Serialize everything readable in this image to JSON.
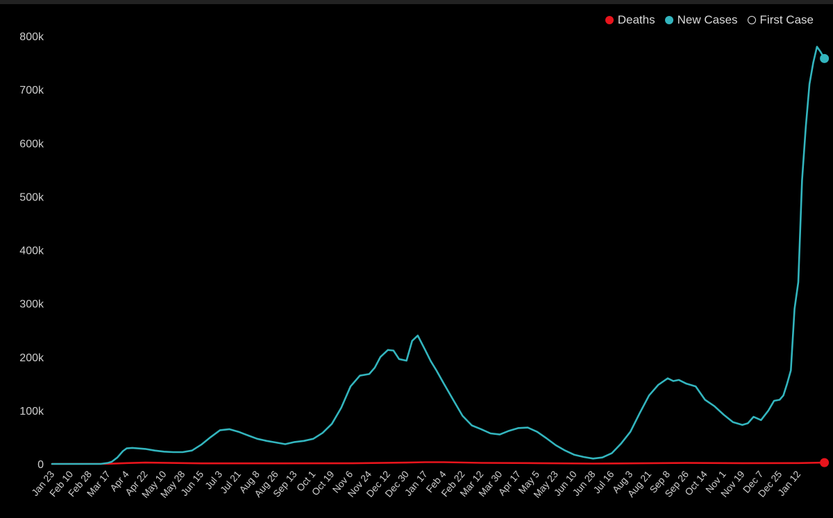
{
  "chart_data": {
    "type": "line",
    "title": "",
    "xlabel": "",
    "ylabel": "",
    "ylim": [
      0,
      800000
    ],
    "legend_position": "top-right",
    "grid": false,
    "y_ticks": [
      {
        "value": 0,
        "label": "0"
      },
      {
        "value": 100000,
        "label": "100k"
      },
      {
        "value": 200000,
        "label": "200k"
      },
      {
        "value": 300000,
        "label": "300k"
      },
      {
        "value": 400000,
        "label": "400k"
      },
      {
        "value": 500000,
        "label": "500k"
      },
      {
        "value": 600000,
        "label": "600k"
      },
      {
        "value": 700000,
        "label": "700k"
      },
      {
        "value": 800000,
        "label": "800k"
      }
    ],
    "x_tick_labels": [
      "Jan 23",
      "Feb 10",
      "Feb 28",
      "Mar 17",
      "Apr 4",
      "Apr 22",
      "May 10",
      "May 28",
      "Jun 15",
      "Jul 3",
      "Jul 21",
      "Aug 8",
      "Aug 26",
      "Sep 13",
      "Oct 1",
      "Oct 19",
      "Nov 6",
      "Nov 24",
      "Dec 12",
      "Dec 30",
      "Jan 17",
      "Feb 4",
      "Feb 22",
      "Mar 12",
      "Mar 30",
      "Apr 17",
      "May 5",
      "May 23",
      "Jun 10",
      "Jun 28",
      "Jul 16",
      "Aug 3",
      "Aug 21",
      "Sep 8",
      "Sep 26",
      "Oct 14",
      "Nov 1",
      "Nov 19",
      "Dec 7",
      "Dec 25",
      "Jan 12"
    ],
    "legend": [
      {
        "name": "Deaths",
        "color": "#e8141c",
        "style": "filled"
      },
      {
        "name": "New Cases",
        "color": "#33b5be",
        "style": "filled"
      },
      {
        "name": "First Case",
        "color": "#e6e6e6",
        "style": "hollow"
      }
    ],
    "series": [
      {
        "name": "New Cases",
        "color": "#33b5be",
        "x_index": [
          0,
          2,
          2.6,
          3,
          3.2,
          3.5,
          3.8,
          4,
          4.3,
          4.6,
          5,
          5.5,
          6,
          6.5,
          7,
          7.5,
          8,
          8.5,
          9,
          9.5,
          10,
          10.3,
          10.6,
          11,
          11.5,
          12,
          12.5,
          13,
          13.5,
          14,
          14.5,
          15,
          15.5,
          16,
          16.5,
          17,
          17.3,
          17.6,
          18,
          18.3,
          18.6,
          19,
          19.3,
          19.6,
          20,
          20.3,
          20.6,
          21,
          21.5,
          22,
          22.5,
          23,
          23.5,
          24,
          24.5,
          25,
          25.5,
          26,
          26.5,
          27,
          27.5,
          28,
          28.5,
          29,
          29.5,
          30,
          30.5,
          31,
          31.5,
          32,
          32.5,
          33,
          33.3,
          33.6,
          34,
          34.5,
          35,
          35.5,
          36,
          36.5,
          37,
          37.3,
          37.6,
          38,
          38.4,
          38.7,
          39,
          39.2,
          39.4,
          39.6,
          39.8,
          40,
          40.2,
          40.4,
          40.6,
          40.8,
          41,
          41.2,
          41.4
        ],
        "values": [
          0,
          0,
          0,
          2000,
          4000,
          12000,
          24000,
          29000,
          30000,
          29000,
          28000,
          25000,
          23000,
          22000,
          22000,
          25000,
          36000,
          50000,
          63000,
          65000,
          60000,
          56000,
          52000,
          47000,
          43000,
          40000,
          37000,
          41000,
          43000,
          47000,
          58000,
          75000,
          105000,
          145000,
          165000,
          168000,
          180000,
          200000,
          213000,
          212000,
          196000,
          193000,
          230000,
          240000,
          213000,
          192000,
          175000,
          150000,
          120000,
          90000,
          72000,
          65000,
          57000,
          55000,
          62000,
          67000,
          68000,
          60000,
          48000,
          35000,
          25000,
          17000,
          13000,
          10000,
          12000,
          20000,
          38000,
          60000,
          95000,
          128000,
          148000,
          160000,
          155000,
          157000,
          150000,
          145000,
          120000,
          108000,
          92000,
          78000,
          73000,
          76000,
          88000,
          82000,
          100000,
          118000,
          120000,
          128000,
          150000,
          175000,
          290000,
          340000,
          530000,
          630000,
          710000,
          750000,
          780000,
          770000,
          758000
        ]
      },
      {
        "name": "Deaths",
        "color": "#e8141c",
        "x_index": [
          0,
          3,
          4,
          5,
          8,
          12,
          16,
          19,
          20,
          21,
          23,
          26,
          29,
          31,
          34,
          37,
          40,
          41.4
        ],
        "values": [
          0,
          200,
          1500,
          2500,
          1000,
          1000,
          1200,
          2500,
          3200,
          3300,
          2000,
          1400,
          600,
          1000,
          1800,
          1400,
          1600,
          2400
        ]
      }
    ],
    "end_markers": [
      {
        "series": "New Cases",
        "x_index": 41.4,
        "value": 758000
      },
      {
        "series": "Deaths",
        "x_index": 41.4,
        "value": 2400
      }
    ]
  }
}
